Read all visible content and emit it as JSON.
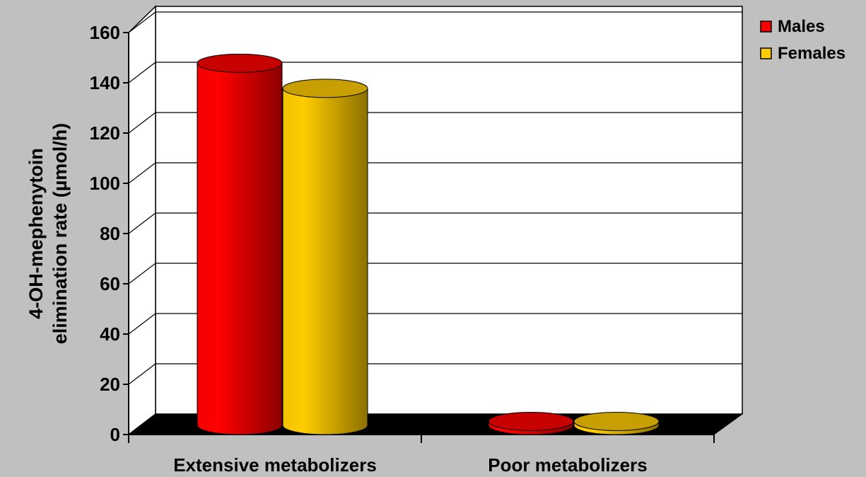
{
  "chart_data": {
    "type": "bar",
    "style": "3d-cylinder",
    "categories": [
      "Extensive metabolizers",
      "Poor metabolizers"
    ],
    "series": [
      {
        "name": "Males",
        "values": [
          143,
          1
        ],
        "color": "#ff0000"
      },
      {
        "name": "Females",
        "values": [
          133,
          1
        ],
        "color": "#ffcc00"
      }
    ],
    "y_ticks": [
      "0",
      "20",
      "40",
      "60",
      "80",
      "100",
      "120",
      "140",
      "160"
    ],
    "ylabel_line1": "4-OH-mephenytoin",
    "ylabel_line2": "elimination rate (µmol/h)",
    "xlabel": "",
    "ylim": [
      0,
      160
    ],
    "grid": true,
    "legend_position": "top-right",
    "background_color": "#c0c0c0",
    "floor_color": "#000000"
  }
}
